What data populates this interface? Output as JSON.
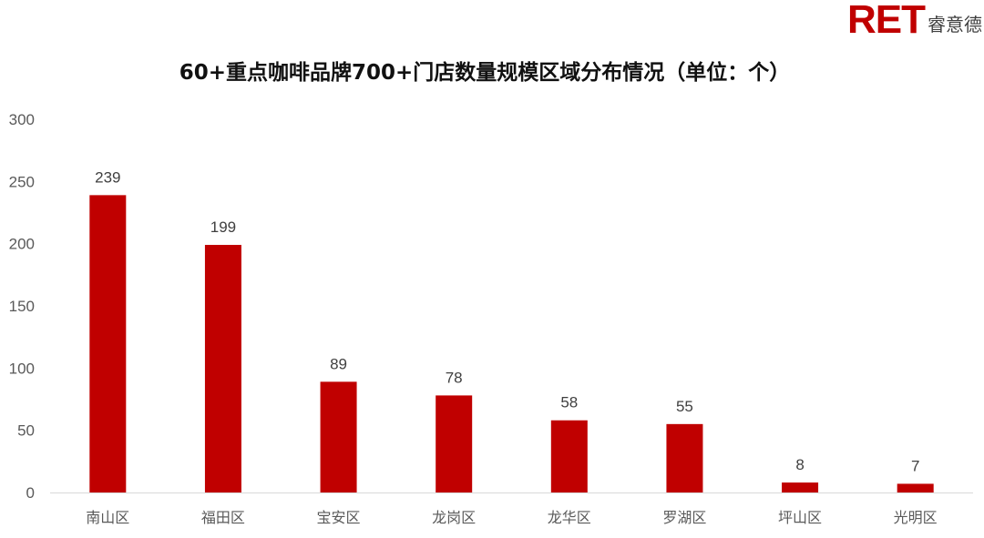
{
  "logo": {
    "mark": "RET",
    "name": "睿意德"
  },
  "chart_data": {
    "type": "bar",
    "title": "60+重点咖啡品牌700+门店数量规模区域分布情况（单位：个）",
    "categories": [
      "南山区",
      "福田区",
      "宝安区",
      "龙岗区",
      "龙华区",
      "罗湖区",
      "坪山区",
      "光明区"
    ],
    "values": [
      239,
      199,
      89,
      78,
      58,
      55,
      8,
      7
    ],
    "ylim": [
      0,
      300
    ],
    "yticks": [
      0,
      50,
      100,
      150,
      200,
      250,
      300
    ],
    "xlabel": "",
    "ylabel": "",
    "grid": false,
    "data_labels": true,
    "bar_color": "#c00000"
  }
}
